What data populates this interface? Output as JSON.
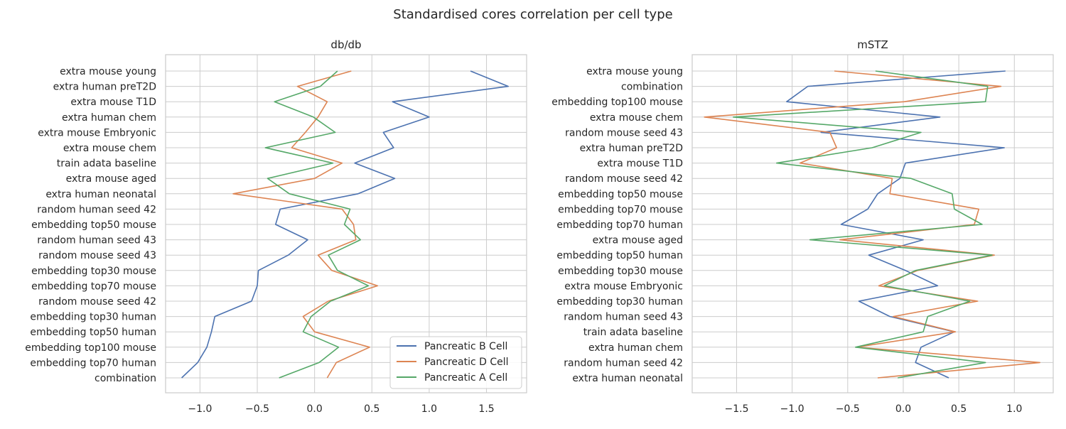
{
  "chart_data": {
    "type": "line",
    "title": "Standardised cores correlation per cell type",
    "legend": {
      "placement": "lower-right",
      "entries": [
        "Pancreatic B Cell",
        "Pancreatic D Cell",
        "Pancreatic A Cell"
      ]
    },
    "colors": {
      "Pancreatic B Cell": "#4c72b0",
      "Pancreatic D Cell": "#dd8452",
      "Pancreatic A Cell": "#55a868"
    },
    "panels": [
      {
        "title": "db/db",
        "xlim": [
          -1.3,
          1.85
        ],
        "xticks": [
          -1.0,
          -0.5,
          0.0,
          0.5,
          1.0,
          1.5
        ],
        "xtick_labels": [
          "−1.0",
          "−0.5",
          "0.0",
          "0.5",
          "1.0",
          "1.5"
        ],
        "grid": true,
        "categories": [
          "extra mouse young",
          "extra human preT2D",
          "extra mouse T1D",
          "extra human chem",
          "extra mouse Embryonic",
          "extra mouse chem",
          "train adata baseline",
          "extra mouse aged",
          "extra human neonatal",
          "random human seed 42",
          "embedding top50 mouse",
          "random human seed 43",
          "random mouse seed 43",
          "embedding top30 mouse",
          "embedding top70 mouse",
          "random mouse seed 42",
          "embedding top30 human",
          "embedding top50 human",
          "embedding top100 mouse",
          "embedding top70 human",
          "combination"
        ],
        "series": [
          {
            "name": "Pancreatic B Cell",
            "values": [
              1.36,
              1.69,
              0.68,
              1.0,
              0.6,
              0.69,
              0.35,
              0.7,
              0.38,
              -0.3,
              -0.34,
              -0.06,
              -0.23,
              -0.49,
              -0.5,
              -0.55,
              -0.87,
              -0.9,
              -0.94,
              -1.02,
              -1.16
            ]
          },
          {
            "name": "Pancreatic D Cell",
            "values": [
              0.32,
              -0.15,
              0.11,
              0.03,
              -0.08,
              -0.2,
              0.24,
              0.0,
              -0.71,
              0.24,
              0.34,
              0.36,
              0.03,
              0.15,
              0.55,
              0.12,
              -0.1,
              0.0,
              0.48,
              0.19,
              0.11
            ]
          },
          {
            "name": "Pancreatic A Cell",
            "values": [
              0.2,
              0.05,
              -0.35,
              -0.01,
              0.18,
              -0.43,
              0.16,
              -0.41,
              -0.22,
              0.31,
              0.26,
              0.4,
              0.12,
              0.2,
              0.47,
              0.14,
              -0.03,
              -0.1,
              0.21,
              0.04,
              -0.31
            ]
          }
        ]
      },
      {
        "title": "mSTZ",
        "xlim": [
          -1.9,
          1.35
        ],
        "xticks": [
          -1.5,
          -1.0,
          -0.5,
          0.0,
          0.5,
          1.0
        ],
        "xtick_labels": [
          "−1.5",
          "−1.0",
          "−0.5",
          "0.0",
          "0.5",
          "1.0"
        ],
        "grid": true,
        "categories": [
          "extra mouse young",
          "combination",
          "embedding top100 mouse",
          "extra mouse chem",
          "random mouse seed 43",
          "extra human preT2D",
          "extra mouse T1D",
          "random mouse seed 42",
          "embedding top50 mouse",
          "embedding top70 mouse",
          "embedding top70 human",
          "extra mouse aged",
          "embedding top50 human",
          "embedding top30 mouse",
          "extra mouse Embryonic",
          "embedding top30 human",
          "random human seed 43",
          "train adata baseline",
          "extra human chem",
          "random human seed 42",
          "extra human neonatal"
        ],
        "series": [
          {
            "name": "Pancreatic B Cell",
            "values": [
              0.92,
              -0.86,
              -1.05,
              0.33,
              -0.74,
              0.91,
              0.02,
              -0.03,
              -0.23,
              -0.32,
              -0.56,
              0.18,
              -0.31,
              0.02,
              0.31,
              -0.4,
              -0.12,
              0.46,
              0.16,
              0.11,
              0.41
            ]
          },
          {
            "name": "Pancreatic D Cell",
            "values": [
              -0.62,
              0.88,
              0.01,
              -1.79,
              -0.66,
              -0.6,
              -0.93,
              -0.1,
              -0.12,
              0.68,
              0.64,
              -0.57,
              0.82,
              0.13,
              -0.22,
              0.67,
              -0.09,
              0.47,
              -0.42,
              1.23,
              -0.23
            ]
          },
          {
            "name": "Pancreatic A Cell",
            "values": [
              -0.25,
              0.76,
              0.74,
              -1.53,
              0.16,
              -0.28,
              -1.14,
              0.07,
              0.44,
              0.46,
              0.71,
              -0.84,
              0.8,
              0.11,
              -0.17,
              0.6,
              0.22,
              0.18,
              -0.43,
              0.74,
              -0.05
            ]
          }
        ]
      }
    ]
  }
}
